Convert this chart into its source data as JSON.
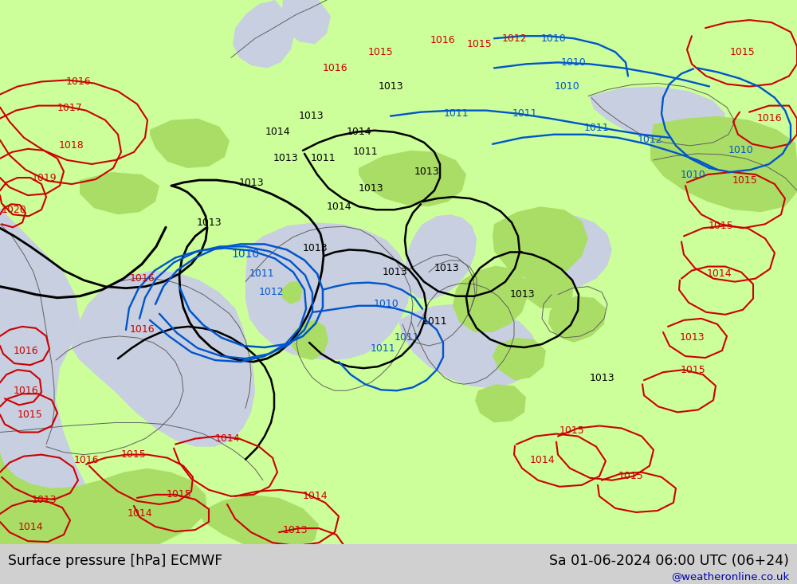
{
  "title_left": "Surface pressure [hPa] ECMWF",
  "title_right": "Sa 01-06-2024 06:00 UTC (06+24)",
  "credit": "@weatheronline.co.uk",
  "bg_color": "#d0d0d0",
  "land_color_light": "#ccff99",
  "land_color_green": "#aadd66",
  "sea_color": "#c8cfe0",
  "contour_color_black": "#000000",
  "contour_color_red": "#cc0000",
  "contour_color_blue": "#0055cc",
  "bottom_bar_color": "#e8e8e8",
  "text_color_black": "#000000",
  "text_color_blue": "#0000aa",
  "fig_width": 10.0,
  "fig_height": 7.33
}
